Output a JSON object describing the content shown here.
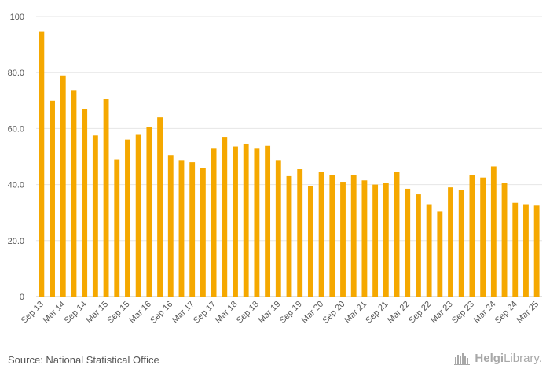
{
  "chart_data": {
    "type": "bar",
    "title": "",
    "xlabel": "",
    "ylabel": "",
    "ylim": [
      0,
      100
    ],
    "y_ticks": [
      "0",
      "20.0",
      "40.0",
      "60.0",
      "80.0",
      "100"
    ],
    "bar_color": "#f5a800",
    "categories": [
      "Sep 13",
      "Dec 13",
      "Mar 14",
      "Jun 14",
      "Sep 14",
      "Dec 14",
      "Mar 15",
      "Jun 15",
      "Sep 15",
      "Dec 15",
      "Mar 16",
      "Jun 16",
      "Sep 16",
      "Dec 16",
      "Mar 17",
      "Jun 17",
      "Sep 17",
      "Dec 17",
      "Mar 18",
      "Jun 18",
      "Sep 18",
      "Dec 18",
      "Mar 19",
      "Jun 19",
      "Sep 19",
      "Dec 19",
      "Mar 20",
      "Jun 20",
      "Sep 20",
      "Dec 20",
      "Mar 21",
      "Jun 21",
      "Sep 21",
      "Dec 21",
      "Mar 22",
      "Jun 22",
      "Sep 22",
      "Dec 22",
      "Mar 23",
      "Jun 23",
      "Sep 23",
      "Dec 23",
      "Mar 24",
      "Jun 24",
      "Sep 24",
      "Dec 24",
      "Mar 25"
    ],
    "x_tick_labels": [
      "Sep 13",
      "Mar 14",
      "Sep 14",
      "Mar 15",
      "Sep 15",
      "Mar 16",
      "Sep 16",
      "Mar 17",
      "Sep 17",
      "Mar 18",
      "Sep 18",
      "Mar 19",
      "Sep 19",
      "Mar 20",
      "Sep 20",
      "Mar 21",
      "Sep 21",
      "Mar 22",
      "Sep 22",
      "Mar 23",
      "Sep 23",
      "Mar 24",
      "Sep 24",
      "Mar 25"
    ],
    "values": [
      94.5,
      70,
      79,
      73.5,
      67,
      57.5,
      70.5,
      49,
      56,
      58,
      60.5,
      64,
      50.5,
      48.5,
      48,
      46,
      53,
      57,
      53.5,
      54.5,
      53,
      54,
      48.5,
      43,
      45.5,
      39.5,
      44.5,
      43.5,
      41,
      43.5,
      41.5,
      40,
      40.5,
      44.5,
      38.5,
      36.5,
      33,
      30.5,
      39,
      38,
      43.5,
      42.5,
      46.5,
      40.5,
      33.5,
      33,
      32.5
    ]
  },
  "footer": {
    "source": "Source: National Statistical Office",
    "brand_first": "Helgi",
    "brand_second": "Library",
    "brand_suffix": "."
  }
}
